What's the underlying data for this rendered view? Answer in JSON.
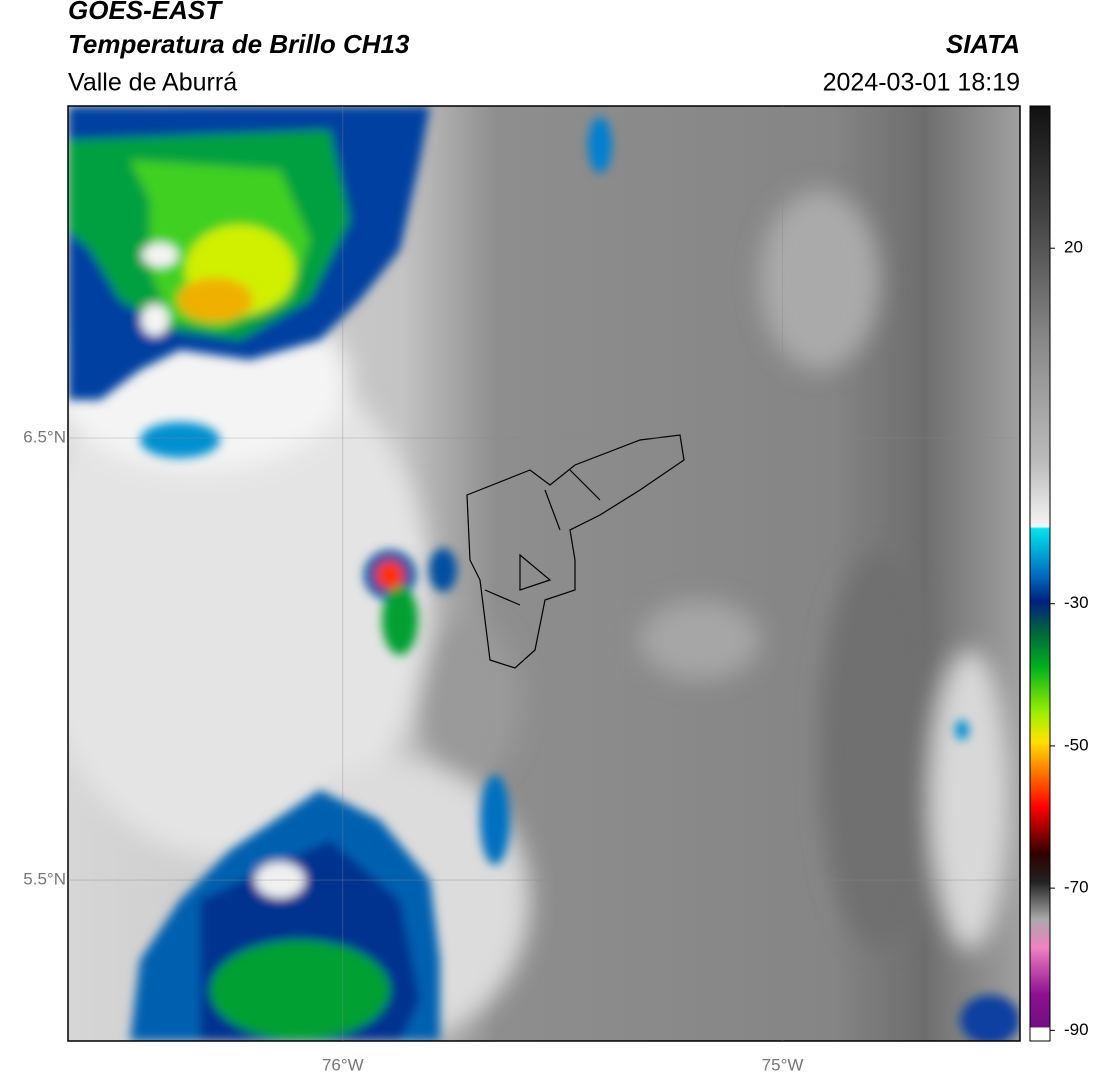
{
  "header": {
    "title": "GOES-EAST",
    "subtitle": "Temperatura de Brillo CH13",
    "region": "Valle de Aburrá",
    "source": "SIATA",
    "datetime": "2024-03-01 18:19"
  },
  "map": {
    "xlim": [
      -76.625,
      -74.46
    ],
    "ylim": [
      5.136,
      7.251
    ],
    "lat_ticks": [
      {
        "value": 6.5,
        "label": "6.5°N"
      },
      {
        "value": 5.5,
        "label": "5.5°N"
      }
    ],
    "lon_ticks": [
      {
        "value": -76,
        "label": "76°W"
      },
      {
        "value": -75,
        "label": "75°W"
      }
    ]
  },
  "colorbar": {
    "lim": [
      -91.5,
      40
    ],
    "ticks": [
      20,
      -30,
      -50,
      -70,
      -90
    ]
  }
}
